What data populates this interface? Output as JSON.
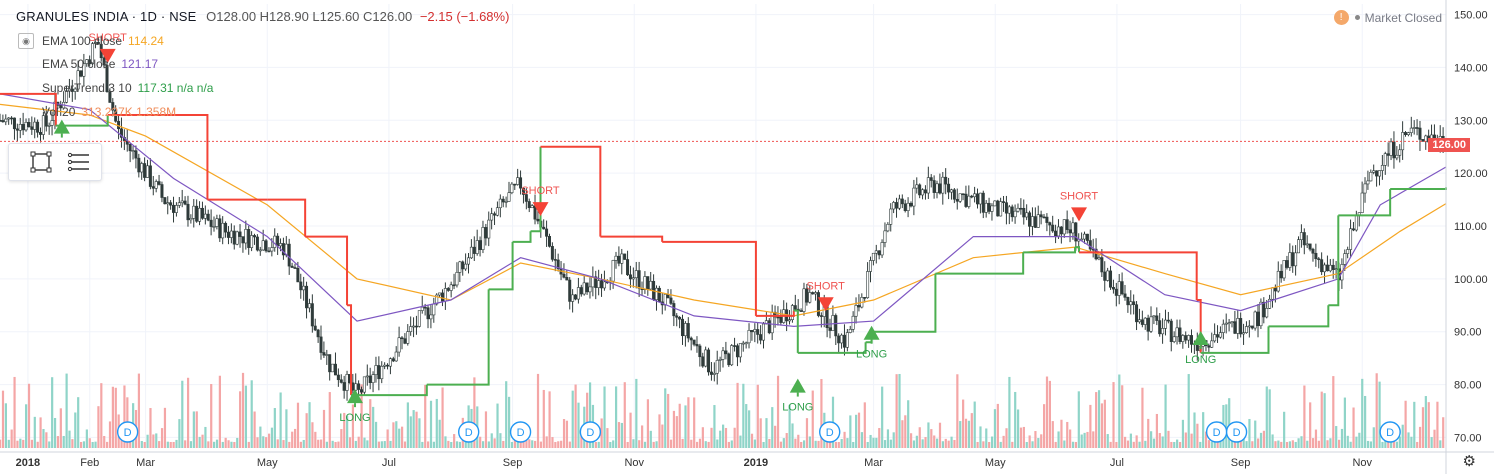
{
  "header": {
    "symbol": "GRANULES INDIA · 1D · NSE",
    "ohlc": "O128.00  H128.90  L125.60  C126.00",
    "change": "−2.15 (−1.68%)"
  },
  "indicators": [
    {
      "name": "EMA 100 close",
      "value": "114.24",
      "color": "#f5a623"
    },
    {
      "name": "EMA 50 close",
      "value": "121.17",
      "color": "#7e57c2"
    },
    {
      "name": "SuperTrend 3 10",
      "value": "117.31  n/a  n/a",
      "color": "#4caf50"
    },
    {
      "name": "Vol 20",
      "value": "313.227K  1.358M",
      "color": "#ef8c5a"
    }
  ],
  "market_status": "Market Closed",
  "last_price": "126.00",
  "icons": {
    "eye": "eye-icon",
    "rectangle_tool": "rectangle-tool-icon",
    "menu_tool": "menu-lines-icon",
    "settings": "gear-icon",
    "market": "clock-icon"
  },
  "colors": {
    "up": "#26a69a",
    "down": "#ef5350",
    "supertrend_up": "#4caf50",
    "supertrend_down": "#f44336",
    "ema50": "#7e57c2",
    "ema100": "#f5a623",
    "vol_up": "#8fd4c8",
    "vol_down": "#f4a6a6"
  },
  "chart_data": {
    "type": "line",
    "title": "GRANULES INDIA · 1D · NSE",
    "y_axis": {
      "ticks": [
        "150.00",
        "140.00",
        "130.00",
        "120.00",
        "110.00",
        "100.00",
        "90.00",
        "80.00",
        "70.00"
      ],
      "range": [
        68,
        152
      ]
    },
    "x_axis": {
      "ticks": [
        "2018",
        "Feb",
        "Mar",
        "May",
        "Jul",
        "Sep",
        "Nov",
        "2019",
        "Mar",
        "May",
        "Jul",
        "Sep",
        "Nov"
      ]
    },
    "x_range": [
      "2017-12-18",
      "2019-12-13"
    ],
    "series": [
      {
        "name": "EMA 100 close",
        "dates": [
          "2017-12-18",
          "2018-02-01",
          "2018-03-01",
          "2018-05-01",
          "2018-06-15",
          "2018-08-01",
          "2018-09-05",
          "2018-10-15",
          "2018-12-01",
          "2019-01-20",
          "2019-03-01",
          "2019-04-20",
          "2019-06-10",
          "2019-07-25",
          "2019-09-01",
          "2019-10-20",
          "2019-11-20",
          "2019-12-13"
        ],
        "values": [
          133,
          131,
          127,
          114,
          100,
          96,
          103,
          100,
          96,
          93,
          96,
          104,
          106,
          101,
          97,
          101,
          109,
          114.24
        ]
      },
      {
        "name": "EMA 50 close",
        "dates": [
          "2017-12-18",
          "2018-02-01",
          "2018-03-15",
          "2018-05-01",
          "2018-06-15",
          "2018-08-01",
          "2018-09-05",
          "2018-10-15",
          "2018-12-01",
          "2019-01-20",
          "2019-03-01",
          "2019-04-20",
          "2019-06-10",
          "2019-07-25",
          "2019-09-01",
          "2019-10-20",
          "2019-11-10",
          "2019-12-13"
        ],
        "values": [
          135,
          132,
          119,
          108,
          92,
          96,
          104,
          100,
          93,
          91,
          92,
          108,
          108,
          97,
          94,
          100,
          114,
          121.17
        ]
      },
      {
        "name": "SuperTrend 3 10",
        "dates": [
          "2017-12-18",
          "2018-01-15",
          "2018-02-10",
          "2018-04-01",
          "2018-05-01",
          "2018-05-20",
          "2018-06-10",
          "2018-06-12",
          "2018-07-20",
          "2018-08-20",
          "2018-09-01",
          "2018-09-10",
          "2018-09-15",
          "2018-10-15",
          "2018-11-15",
          "2019-01-01",
          "2019-01-20",
          "2019-01-22",
          "2019-02-25",
          "2019-02-28",
          "2019-04-01",
          "2019-05-15",
          "2019-06-10",
          "2019-06-12",
          "2019-08-10",
          "2019-08-12",
          "2019-09-15",
          "2019-10-15",
          "2019-10-20",
          "2019-11-15",
          "2019-12-13"
        ],
        "values": [
          135,
          129,
          131,
          115,
          115,
          108,
          95,
          78,
          80,
          98,
          107,
          109,
          125,
          108,
          107,
          93,
          94,
          86,
          88,
          90,
          101,
          105,
          106,
          105,
          96,
          86,
          91,
          95,
          112,
          117,
          117.31
        ]
      },
      {
        "name": "Close",
        "dates": [
          "2017-12-18",
          "2018-01-10",
          "2018-01-25",
          "2018-02-05",
          "2018-02-15",
          "2018-03-10",
          "2018-04-10",
          "2018-05-10",
          "2018-06-01",
          "2018-06-15",
          "2018-07-05",
          "2018-08-05",
          "2018-08-25",
          "2018-09-05",
          "2018-09-15",
          "2018-10-01",
          "2018-10-25",
          "2018-11-15",
          "2018-12-10",
          "2019-01-10",
          "2019-01-28",
          "2019-02-15",
          "2019-03-10",
          "2019-04-01",
          "2019-05-01",
          "2019-06-10",
          "2019-06-25",
          "2019-07-15",
          "2019-08-10",
          "2019-09-10",
          "2019-10-01",
          "2019-10-20",
          "2019-11-05",
          "2019-11-25",
          "2019-12-13"
        ],
        "values": [
          130,
          129,
          138,
          145,
          128,
          115,
          109,
          106,
          84,
          78,
          87,
          101,
          113,
          118,
          110,
          96,
          103,
          96,
          83,
          92,
          97,
          88,
          113,
          118,
          113,
          109,
          101,
          92,
          88,
          93,
          107,
          100,
          120,
          128,
          126
        ]
      }
    ],
    "signals": [
      {
        "date": "2018-01-18",
        "type": "LONG",
        "price": 129
      },
      {
        "date": "2018-02-10",
        "type": "SHORT",
        "price": 142
      },
      {
        "date": "2018-06-14",
        "type": "LONG",
        "price": 78
      },
      {
        "date": "2018-09-15",
        "type": "SHORT",
        "price": 113
      },
      {
        "date": "2019-01-22",
        "type": "LONG",
        "price": 80
      },
      {
        "date": "2019-02-05",
        "type": "SHORT",
        "price": 95
      },
      {
        "date": "2019-02-28",
        "type": "LONG",
        "price": 90
      },
      {
        "date": "2019-06-12",
        "type": "SHORT",
        "price": 112
      },
      {
        "date": "2019-08-12",
        "type": "LONG",
        "price": 89
      }
    ],
    "dividend_markers": [
      "2018-02-20",
      "2018-08-10",
      "2018-09-05",
      "2018-10-10",
      "2019-02-07",
      "2019-08-20",
      "2019-08-30",
      "2019-11-15"
    ],
    "grid": true,
    "price_line": 126.0
  }
}
